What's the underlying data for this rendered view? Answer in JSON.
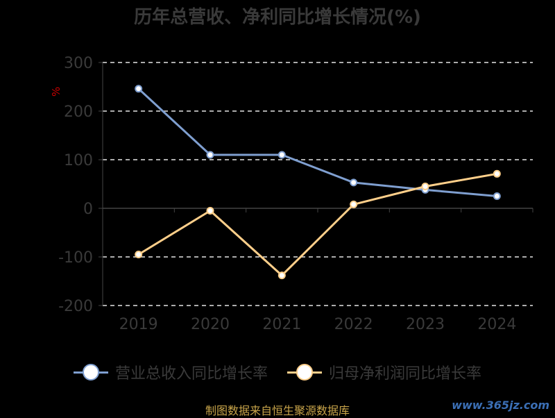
{
  "chart_data": {
    "type": "line",
    "title": "历年总营收、净利同比增长情况(%)",
    "ylabel": "%",
    "categories": [
      "2019",
      "2020",
      "2021",
      "2022",
      "2023",
      "2024"
    ],
    "ylim": [
      -200,
      300
    ],
    "yticks": [
      "300",
      "200",
      "100",
      "0",
      "-100",
      "-200"
    ],
    "grid": true,
    "legend_position": "bottom",
    "series": [
      {
        "name": "营业总收入同比增长率",
        "color": "#7f9fd0",
        "values": [
          246,
          110,
          110,
          53,
          38,
          25
        ]
      },
      {
        "name": "归母净利润同比增长率",
        "color": "#ffcf8a",
        "values": [
          -95,
          -5,
          -138,
          8,
          45,
          71
        ]
      }
    ]
  },
  "footer": {
    "source": "制图数据来自恒生聚源数据库",
    "watermark": "www.365jz.com"
  }
}
